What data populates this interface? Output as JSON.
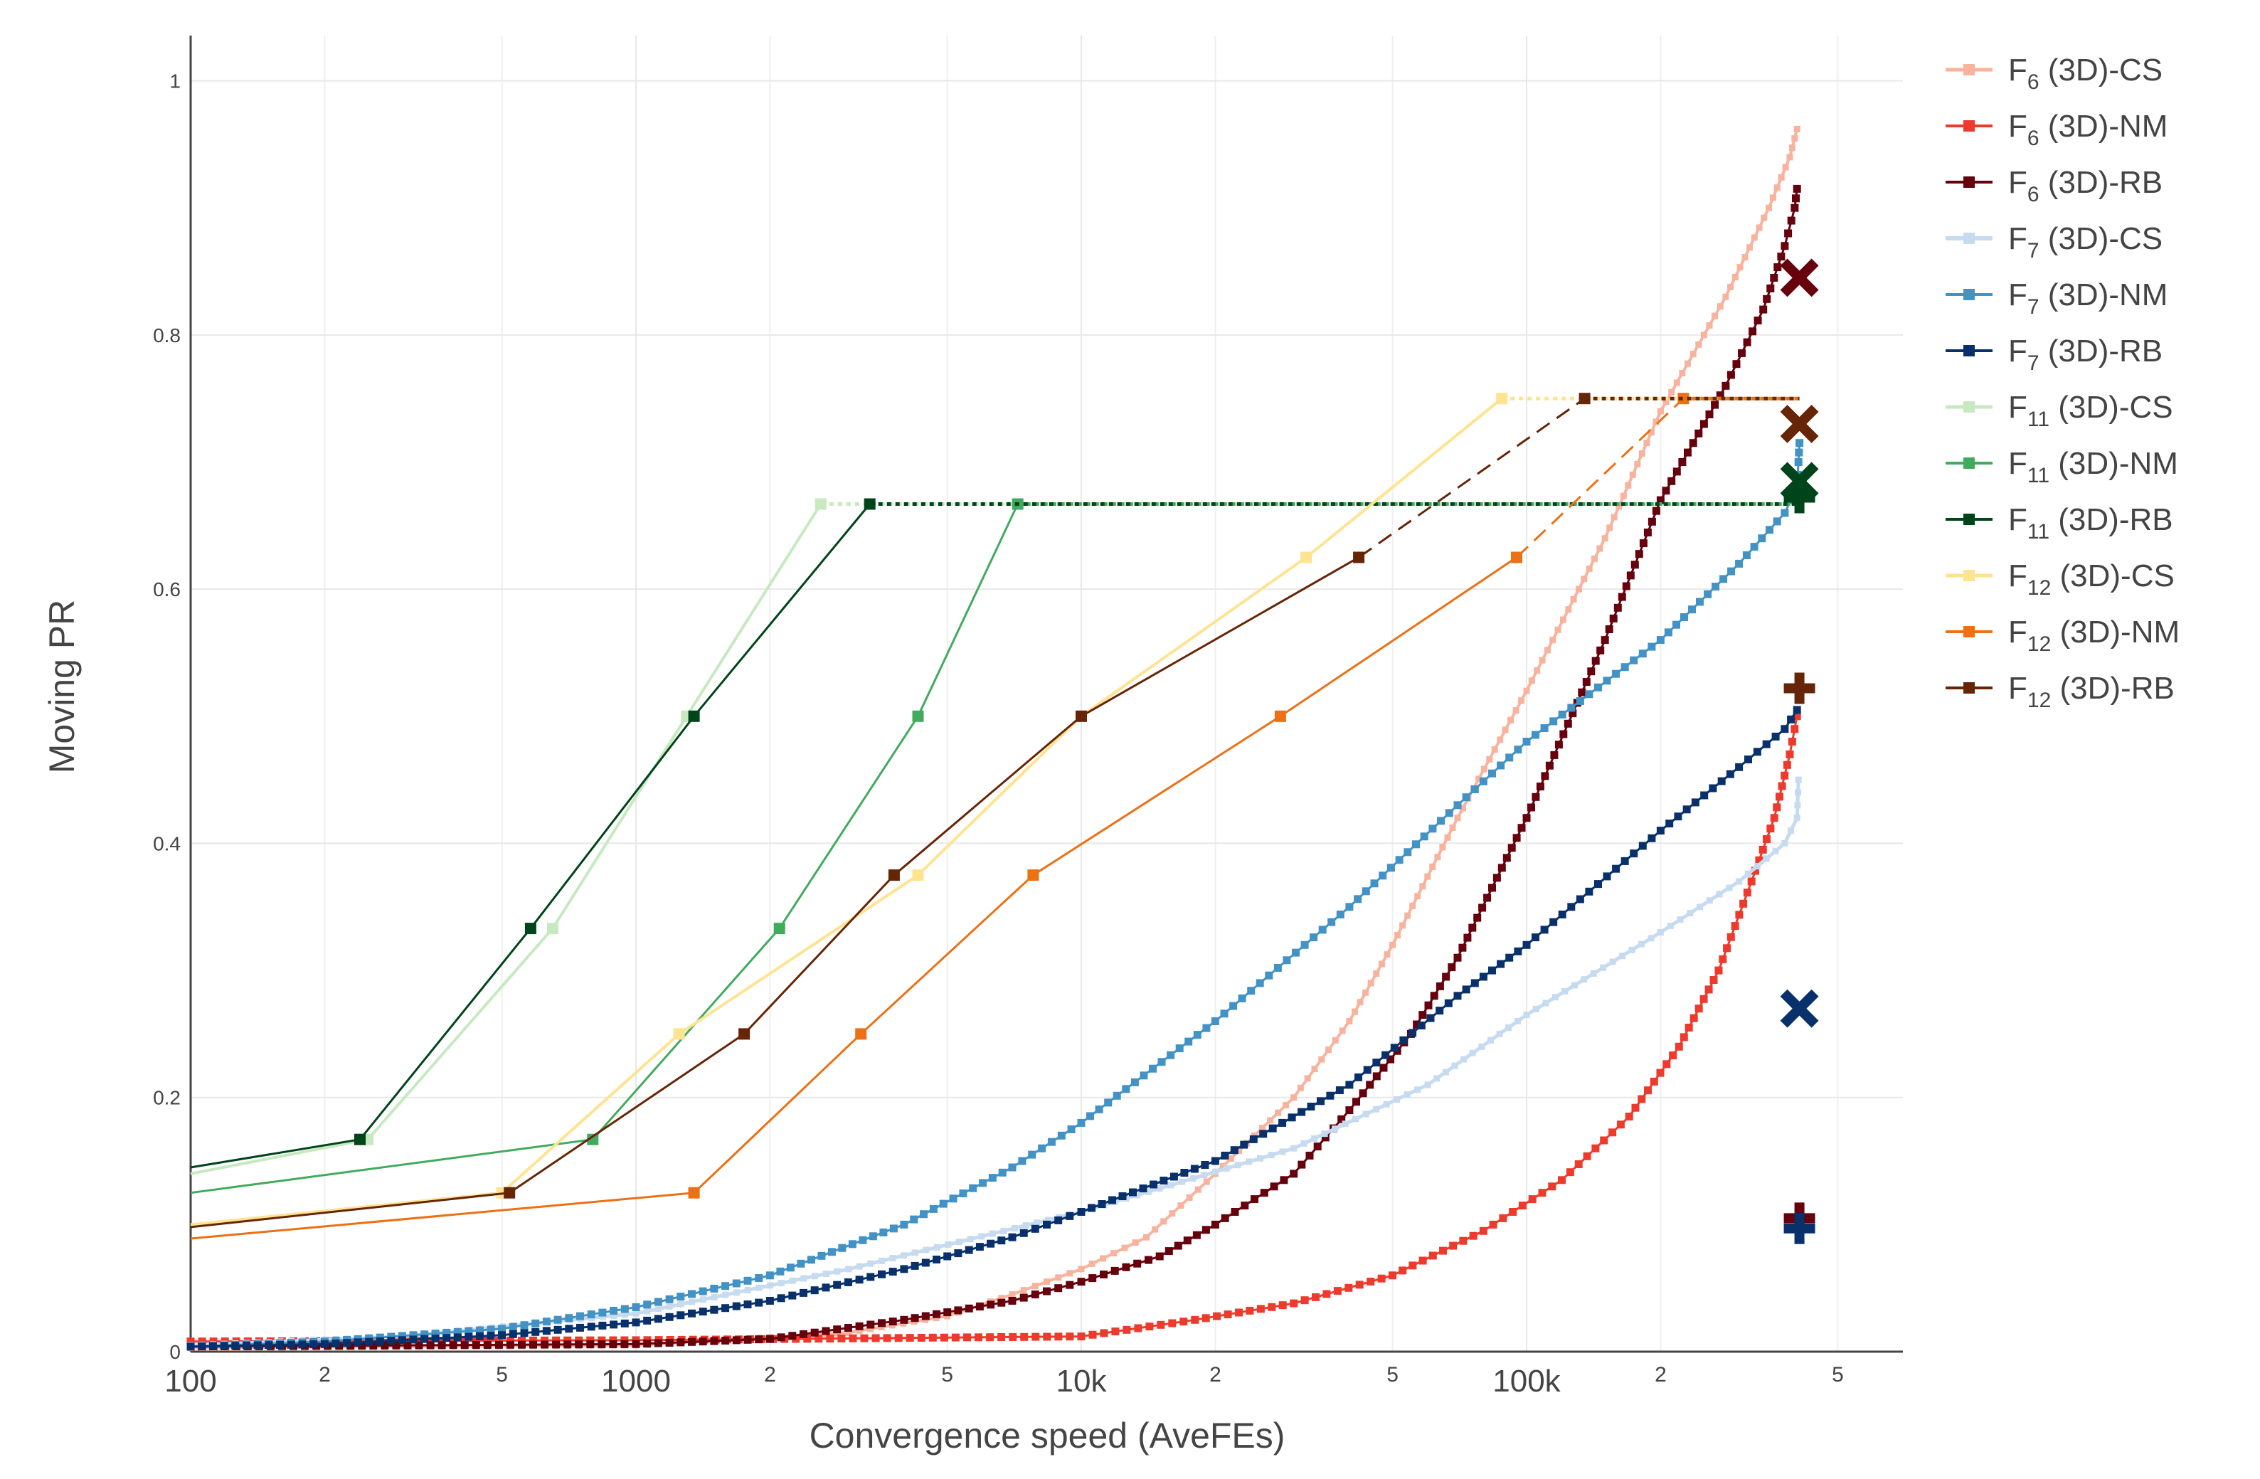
{
  "chart_data": {
    "type": "line",
    "xlabel": "Convergence speed (AveFEs)",
    "ylabel": "Moving PR",
    "xscale": "log",
    "xlim": [
      100,
      700000
    ],
    "ylim": [
      0,
      1.03
    ],
    "grid": true,
    "legend_position": "right",
    "x_major_ticks": [
      {
        "value": 100,
        "label": "100"
      },
      {
        "value": 1000,
        "label": "1000"
      },
      {
        "value": 10000,
        "label": "10k"
      },
      {
        "value": 100000,
        "label": "100k"
      }
    ],
    "x_minor_ticks": [
      {
        "value": 200,
        "label": "2"
      },
      {
        "value": 500,
        "label": "5"
      },
      {
        "value": 2000,
        "label": "2"
      },
      {
        "value": 5000,
        "label": "5"
      },
      {
        "value": 20000,
        "label": "2"
      },
      {
        "value": 50000,
        "label": "5"
      },
      {
        "value": 200000,
        "label": "2"
      },
      {
        "value": 500000,
        "label": "5"
      }
    ],
    "y_ticks": [
      {
        "value": 0,
        "label": "0"
      },
      {
        "value": 0.2,
        "label": "0.2"
      },
      {
        "value": 0.4,
        "label": "0.4"
      },
      {
        "value": 0.6,
        "label": "0.6"
      },
      {
        "value": 0.8,
        "label": "0.8"
      },
      {
        "value": 1,
        "label": "1"
      }
    ],
    "series": [
      {
        "name": "F6 (3D)-CS",
        "fn": "F",
        "sub": "6",
        "rest": " (3D)-CS",
        "color": "#f7b39d",
        "width": 4,
        "marker": 9,
        "points": [
          [
            100,
            0.003
          ],
          [
            1000,
            0.005
          ],
          [
            3000,
            0.015
          ],
          [
            5000,
            0.028
          ],
          [
            7000,
            0.045
          ],
          [
            10000,
            0.065
          ],
          [
            14000,
            0.09
          ],
          [
            20000,
            0.14
          ],
          [
            30000,
            0.2
          ],
          [
            40000,
            0.26
          ],
          [
            50000,
            0.32
          ],
          [
            70000,
            0.42
          ],
          [
            100000,
            0.52
          ],
          [
            150000,
            0.64
          ],
          [
            200000,
            0.74
          ],
          [
            280000,
            0.83
          ],
          [
            350000,
            0.9
          ],
          [
            390000,
            0.94
          ],
          [
            405000,
            0.962
          ]
        ]
      },
      {
        "name": "F6 (3D)-NM",
        "fn": "F",
        "sub": "6",
        "rest": " (3D)-NM",
        "color": "#ee3a2c",
        "width": 3,
        "marker": 11,
        "points": [
          [
            100,
            0.008
          ],
          [
            1000,
            0.009
          ],
          [
            10000,
            0.012
          ],
          [
            18000,
            0.025
          ],
          [
            30000,
            0.038
          ],
          [
            50000,
            0.06
          ],
          [
            80000,
            0.095
          ],
          [
            120000,
            0.135
          ],
          [
            170000,
            0.185
          ],
          [
            220000,
            0.24
          ],
          [
            270000,
            0.3
          ],
          [
            320000,
            0.37
          ],
          [
            360000,
            0.42
          ],
          [
            390000,
            0.47
          ],
          [
            405000,
            0.5
          ]
        ]
      },
      {
        "name": "F6 (3D)-RB",
        "fn": "F",
        "sub": "6",
        "rest": " (3D)-RB",
        "color": "#67000d",
        "width": 3,
        "marker": 11,
        "points": [
          [
            100,
            0.004
          ],
          [
            1000,
            0.006
          ],
          [
            2000,
            0.01
          ],
          [
            4000,
            0.025
          ],
          [
            7000,
            0.04
          ],
          [
            10000,
            0.055
          ],
          [
            15000,
            0.075
          ],
          [
            20000,
            0.1
          ],
          [
            30000,
            0.14
          ],
          [
            40000,
            0.19
          ],
          [
            55000,
            0.25
          ],
          [
            70000,
            0.31
          ],
          [
            100000,
            0.42
          ],
          [
            150000,
            0.56
          ],
          [
            200000,
            0.67
          ],
          [
            280000,
            0.76
          ],
          [
            340000,
            0.82
          ],
          [
            380000,
            0.87
          ],
          [
            400000,
            0.9
          ],
          [
            405000,
            0.915
          ]
        ]
      },
      {
        "name": "F7 (3D)-CS",
        "fn": "F",
        "sub": "7",
        "rest": " (3D)-CS",
        "color": "#c6dbef",
        "width": 5,
        "marker": 9,
        "points": [
          [
            100,
            0.005
          ],
          [
            300,
            0.012
          ],
          [
            1000,
            0.03
          ],
          [
            3000,
            0.065
          ],
          [
            10000,
            0.11
          ],
          [
            30000,
            0.16
          ],
          [
            60000,
            0.21
          ],
          [
            100000,
            0.265
          ],
          [
            200000,
            0.33
          ],
          [
            300000,
            0.37
          ],
          [
            380000,
            0.4
          ],
          [
            405000,
            0.42
          ],
          [
            408000,
            0.45
          ]
        ]
      },
      {
        "name": "F7 (3D)-NM",
        "fn": "F",
        "sub": "7",
        "rest": " (3D)-NM",
        "color": "#4292c6",
        "width": 3,
        "marker": 11,
        "points": [
          [
            100,
            0.004
          ],
          [
            200,
            0.008
          ],
          [
            500,
            0.018
          ],
          [
            1000,
            0.035
          ],
          [
            2000,
            0.06
          ],
          [
            4000,
            0.1
          ],
          [
            7000,
            0.145
          ],
          [
            10000,
            0.18
          ],
          [
            20000,
            0.26
          ],
          [
            40000,
            0.35
          ],
          [
            70000,
            0.43
          ],
          [
            100000,
            0.48
          ],
          [
            200000,
            0.56
          ],
          [
            300000,
            0.62
          ],
          [
            380000,
            0.66
          ],
          [
            405000,
            0.68
          ],
          [
            408000,
            0.7
          ],
          [
            410000,
            0.715
          ]
        ]
      },
      {
        "name": "F7 (3D)-RB",
        "fn": "F",
        "sub": "7",
        "rest": " (3D)-RB",
        "color": "#08306b",
        "width": 3,
        "marker": 11,
        "points": [
          [
            100,
            0.004
          ],
          [
            200,
            0.006
          ],
          [
            500,
            0.013
          ],
          [
            1000,
            0.023
          ],
          [
            2000,
            0.04
          ],
          [
            4000,
            0.065
          ],
          [
            7000,
            0.09
          ],
          [
            10000,
            0.11
          ],
          [
            20000,
            0.15
          ],
          [
            40000,
            0.21
          ],
          [
            70000,
            0.28
          ],
          [
            100000,
            0.32
          ],
          [
            200000,
            0.41
          ],
          [
            300000,
            0.46
          ],
          [
            380000,
            0.49
          ],
          [
            405000,
            0.505
          ]
        ]
      },
      {
        "name": "F11 (3D)-CS",
        "fn": "F",
        "sub": "11",
        "rest": " (3D)-CS",
        "color": "#c7e9c0",
        "width": 4,
        "marker": 9,
        "points": [
          [
            100,
            0.14
          ],
          [
            250,
            0.167
          ],
          [
            650,
            0.333
          ],
          [
            1300,
            0.5
          ],
          [
            2600,
            0.667
          ]
        ],
        "dotted": [
          [
            2600,
            0.667
          ],
          [
            410000,
            0.667
          ]
        ]
      },
      {
        "name": "F11 (3D)-NM",
        "fn": "F",
        "sub": "11",
        "rest": " (3D)-NM",
        "color": "#41ab5d",
        "width": 3,
        "marker": 11,
        "points": [
          [
            100,
            0.125
          ],
          [
            800,
            0.167
          ],
          [
            2100,
            0.333
          ],
          [
            4300,
            0.5
          ],
          [
            7200,
            0.667
          ]
        ],
        "dotted": [
          [
            7200,
            0.667
          ],
          [
            410000,
            0.667
          ]
        ]
      },
      {
        "name": "F11 (3D)-RB",
        "fn": "F",
        "sub": "11",
        "rest": " (3D)-RB",
        "color": "#00441b",
        "width": 3,
        "marker": 11,
        "points": [
          [
            100,
            0.145
          ],
          [
            240,
            0.167
          ],
          [
            580,
            0.333
          ],
          [
            1350,
            0.5
          ],
          [
            3350,
            0.667
          ]
        ],
        "dotted": [
          [
            3350,
            0.667
          ],
          [
            410000,
            0.667
          ]
        ]
      },
      {
        "name": "F12 (3D)-CS",
        "fn": "F",
        "sub": "12",
        "rest": " (3D)-CS",
        "color": "#fee391",
        "width": 4,
        "marker": 9,
        "points": [
          [
            100,
            0.1
          ],
          [
            500,
            0.125
          ],
          [
            1250,
            0.25
          ],
          [
            4300,
            0.375
          ],
          [
            10000,
            0.5
          ],
          [
            32000,
            0.625
          ],
          [
            88000,
            0.75
          ]
        ],
        "dotted": [
          [
            88000,
            0.75
          ],
          [
            410000,
            0.75
          ]
        ]
      },
      {
        "name": "F12 (3D)-NM",
        "fn": "F",
        "sub": "12",
        "rest": " (3D)-NM",
        "color": "#ec7014",
        "width": 3,
        "marker": 11,
        "points": [
          [
            100,
            0.089
          ],
          [
            1350,
            0.125
          ],
          [
            3200,
            0.25
          ],
          [
            7800,
            0.375
          ],
          [
            28000,
            0.5
          ],
          [
            95000,
            0.625
          ]
        ],
        "dashed": [
          [
            95000,
            0.625
          ],
          [
            225000,
            0.75
          ]
        ],
        "dotted": [
          [
            225000,
            0.75
          ],
          [
            410000,
            0.75
          ]
        ]
      },
      {
        "name": "F12 (3D)-RB",
        "fn": "F",
        "sub": "12",
        "rest": " (3D)-RB",
        "color": "#662506",
        "width": 3,
        "marker": 11,
        "points": [
          [
            100,
            0.098
          ],
          [
            520,
            0.125
          ],
          [
            1750,
            0.25
          ],
          [
            3800,
            0.375
          ],
          [
            10000,
            0.5
          ],
          [
            42000,
            0.625
          ]
        ],
        "dashed": [
          [
            42000,
            0.625
          ],
          [
            135000,
            0.75
          ]
        ],
        "dotted": [
          [
            135000,
            0.75
          ],
          [
            410000,
            0.75
          ]
        ]
      }
    ],
    "end_markers": [
      {
        "symbol": "x",
        "x": 410000,
        "y": 0.845,
        "color": "#67000d"
      },
      {
        "symbol": "x",
        "x": 410000,
        "y": 0.73,
        "color": "#662506"
      },
      {
        "symbol": "x",
        "x": 410000,
        "y": 0.685,
        "color": "#00441b"
      },
      {
        "symbol": "+",
        "x": 410000,
        "y": 0.672,
        "color": "#00441b"
      },
      {
        "symbol": "+",
        "x": 410000,
        "y": 0.522,
        "color": "#662506"
      },
      {
        "symbol": "x",
        "x": 410000,
        "y": 0.27,
        "color": "#08306b"
      },
      {
        "symbol": "+",
        "x": 410000,
        "y": 0.105,
        "color": "#67000d"
      },
      {
        "symbol": "+",
        "x": 410000,
        "y": 0.097,
        "color": "#08306b"
      }
    ]
  }
}
